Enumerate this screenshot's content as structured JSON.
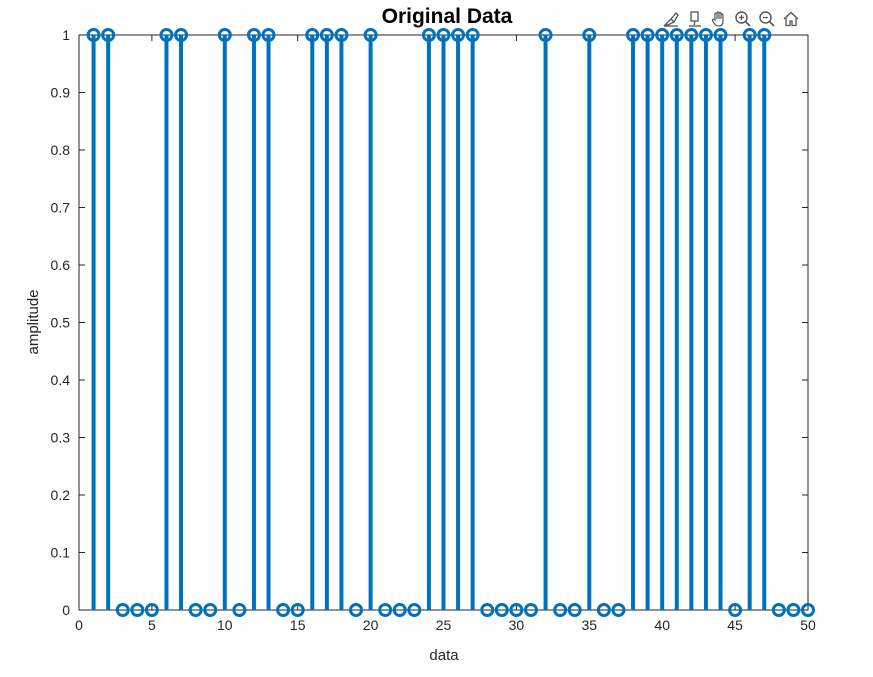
{
  "toolbar": {
    "icons": [
      "brush-icon",
      "datatip-icon",
      "pan-hand-icon",
      "zoom-in-icon",
      "zoom-out-icon",
      "home-icon"
    ]
  },
  "chart_data": {
    "type": "stem",
    "title": "Original Data",
    "xlabel": "data",
    "ylabel": "amplitude",
    "xlim": [
      0,
      50
    ],
    "ylim": [
      0,
      1
    ],
    "xticks": [
      "0",
      "5",
      "10",
      "15",
      "20",
      "25",
      "30",
      "35",
      "40",
      "45",
      "50"
    ],
    "yticks": [
      "0",
      "0.1",
      "0.2",
      "0.3",
      "0.4",
      "0.5",
      "0.6",
      "0.7",
      "0.8",
      "0.9",
      "1"
    ],
    "grid": true,
    "color": "#0072BD",
    "x": [
      1,
      2,
      3,
      4,
      5,
      6,
      7,
      8,
      9,
      10,
      11,
      12,
      13,
      14,
      15,
      16,
      17,
      18,
      19,
      20,
      21,
      22,
      23,
      24,
      25,
      26,
      27,
      28,
      29,
      30,
      31,
      32,
      33,
      34,
      35,
      36,
      37,
      38,
      39,
      40,
      41,
      42,
      43,
      44,
      45,
      46,
      47,
      48,
      49,
      50
    ],
    "values": [
      1,
      1,
      0,
      0,
      0,
      1,
      1,
      0,
      0,
      1,
      0,
      1,
      1,
      0,
      0,
      1,
      1,
      1,
      0,
      1,
      0,
      0,
      0,
      1,
      1,
      1,
      1,
      0,
      0,
      0,
      0,
      1,
      0,
      0,
      1,
      0,
      0,
      1,
      1,
      1,
      1,
      1,
      1,
      1,
      0,
      1,
      1,
      0,
      0,
      0
    ]
  }
}
